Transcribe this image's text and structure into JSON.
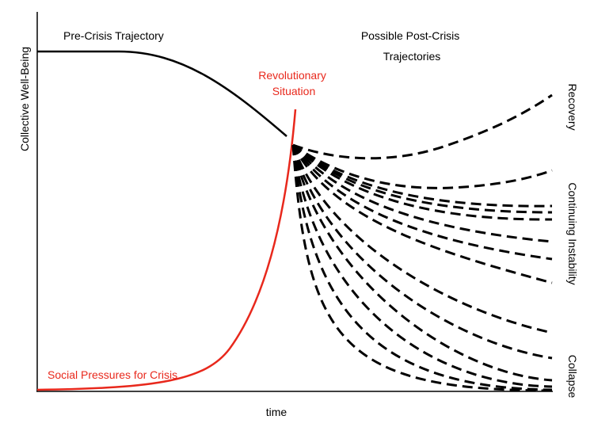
{
  "labels": {
    "pre_crisis": "Pre-Crisis Trajectory",
    "post_crisis": [
      "Possible Post-Crisis",
      "Trajectories"
    ],
    "revolutionary": [
      "Revolutionary",
      "Situation"
    ],
    "social_pressures": "Social Pressures for Crisis",
    "y_axis": "Collective Well-Being",
    "x_axis": "time",
    "recovery": "Recovery",
    "instability": "Continuing Instability",
    "collapse": "Collapse"
  }
}
